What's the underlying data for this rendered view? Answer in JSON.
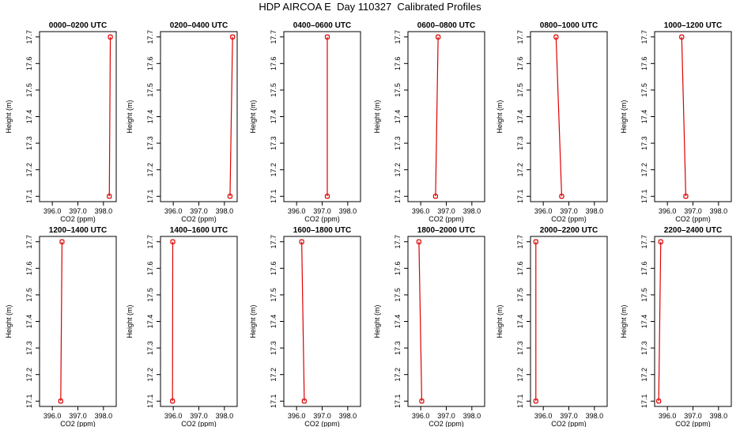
{
  "page": {
    "title": "HDP AIRCOA E  Day 110327  Calibrated Profiles"
  },
  "chart_data": {
    "type": "line",
    "series_color": "#dd0000",
    "xlabel": "CO2 (ppm)",
    "ylabel": "Height (m)",
    "xlim": [
      395.5,
      398.5
    ],
    "ylim": [
      17.08,
      17.72
    ],
    "x_ticks": [
      396.0,
      397.0,
      398.0
    ],
    "x_tick_labels": [
      "396.0",
      "397.0",
      "398.0"
    ],
    "y_ticks": [
      17.1,
      17.2,
      17.3,
      17.4,
      17.5,
      17.6,
      17.7
    ],
    "y_tick_labels": [
      "17.1",
      "17.2",
      "17.3",
      "17.4",
      "17.5",
      "17.6",
      "17.7"
    ],
    "panels": [
      {
        "title": "0000–0200 UTC",
        "points": [
          {
            "x": 398.23,
            "y": 17.1
          },
          {
            "x": 398.27,
            "y": 17.7
          }
        ]
      },
      {
        "title": "0200–0400 UTC",
        "points": [
          {
            "x": 398.22,
            "y": 17.1
          },
          {
            "x": 398.32,
            "y": 17.7
          }
        ]
      },
      {
        "title": "0400–0600 UTC",
        "points": [
          {
            "x": 397.2,
            "y": 17.1
          },
          {
            "x": 397.2,
            "y": 17.7
          }
        ]
      },
      {
        "title": "0600–0800 UTC",
        "points": [
          {
            "x": 396.58,
            "y": 17.1
          },
          {
            "x": 396.68,
            "y": 17.7
          }
        ]
      },
      {
        "title": "0800–1000 UTC",
        "points": [
          {
            "x": 396.72,
            "y": 17.1
          },
          {
            "x": 396.5,
            "y": 17.7
          }
        ]
      },
      {
        "title": "1000–1200 UTC",
        "points": [
          {
            "x": 396.72,
            "y": 17.1
          },
          {
            "x": 396.56,
            "y": 17.7
          }
        ]
      },
      {
        "title": "1200–1400 UTC",
        "points": [
          {
            "x": 396.33,
            "y": 17.1
          },
          {
            "x": 396.38,
            "y": 17.7
          }
        ]
      },
      {
        "title": "1400–1600 UTC",
        "points": [
          {
            "x": 395.97,
            "y": 17.1
          },
          {
            "x": 395.98,
            "y": 17.7
          }
        ]
      },
      {
        "title": "1600–1800 UTC",
        "points": [
          {
            "x": 396.3,
            "y": 17.1
          },
          {
            "x": 396.2,
            "y": 17.7
          }
        ]
      },
      {
        "title": "1800–2000 UTC",
        "points": [
          {
            "x": 396.04,
            "y": 17.1
          },
          {
            "x": 395.93,
            "y": 17.7
          }
        ]
      },
      {
        "title": "2000–2200 UTC",
        "points": [
          {
            "x": 395.71,
            "y": 17.1
          },
          {
            "x": 395.71,
            "y": 17.7
          }
        ]
      },
      {
        "title": "2200–2400 UTC",
        "points": [
          {
            "x": 395.66,
            "y": 17.1
          },
          {
            "x": 395.74,
            "y": 17.7
          }
        ]
      }
    ]
  }
}
